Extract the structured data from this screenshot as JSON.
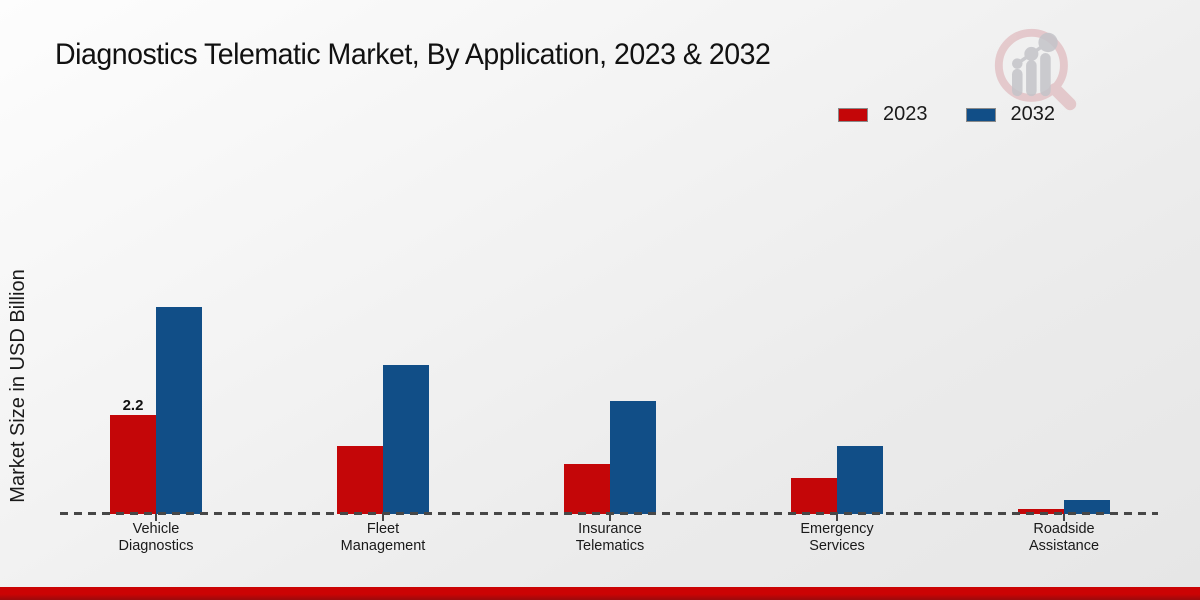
{
  "title": "Diagnostics Telematic Market, By Application, 2023 & 2032",
  "y_axis_label": "Market Size in USD Billion",
  "legend": {
    "position": "top-right",
    "items": [
      {
        "label": "2023",
        "color": "#c40608"
      },
      {
        "label": "2032",
        "color": "#114e87"
      }
    ]
  },
  "watermark_icon": "magnifier-growth-chart-logo",
  "footer": {
    "band_color": "#cb0304"
  },
  "chart_data": {
    "type": "bar",
    "title": "Diagnostics Telematic Market, By Application, 2023 & 2032",
    "xlabel": "",
    "ylabel": "Market Size in USD Billion",
    "unit": "USD Billion",
    "categories": [
      "Vehicle Diagnostics",
      "Fleet Management",
      "Insurance Telematics",
      "Emergency Services",
      "Roadside Assistance"
    ],
    "series": [
      {
        "name": "2023",
        "color": "#c40608",
        "values": [
          2.2,
          1.5,
          1.1,
          0.8,
          0.1
        ]
      },
      {
        "name": "2032",
        "color": "#114e87",
        "values": [
          4.6,
          3.3,
          2.5,
          1.5,
          0.3
        ]
      }
    ],
    "data_labels": [
      {
        "series_index": 0,
        "category_index": 0,
        "text": "2.2"
      }
    ],
    "ylim": [
      0,
      5
    ],
    "grid": false,
    "y_axis_ticks_visible": false,
    "baseline_style": "dashed",
    "legend_position": "top-right"
  }
}
